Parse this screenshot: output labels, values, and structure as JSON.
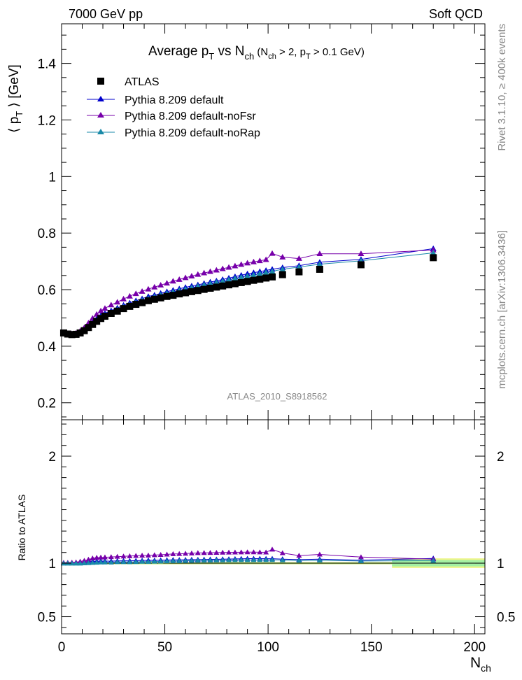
{
  "header": {
    "left": "7000 GeV pp",
    "right": "Soft QCD",
    "side_top": "Rivet 3.1.10, ≥ 400k events",
    "side_bottom": "mcplots.cern.ch [arXiv:1306.3436]"
  },
  "chart_data": [
    {
      "type": "scatter",
      "title_main": "Average p",
      "title_sub_T": "T",
      "title_mid": " vs N",
      "title_sub_ch": "ch",
      "title_cond": " (N",
      "title_cond_sub": "ch",
      "title_cond2": " > 2, p",
      "title_cond_sub2": "T",
      "title_cond3": " > 0.1 GeV)",
      "ylabel": "⟨ pₜ ⟩ [GeV]",
      "ylabel_pre": "⟨ p",
      "ylabel_sub": "T",
      "ylabel_post": " ⟩ [GeV]",
      "watermark": "ATLAS_2010_S8918562",
      "xlim": [
        0,
        205
      ],
      "ylim": [
        0.14,
        1.54
      ],
      "yticks": [
        0.2,
        0.4,
        0.6,
        0.8,
        1,
        1.2,
        1.4
      ],
      "ytick_labels": [
        "0.2",
        "0.4",
        "0.6",
        "0.8",
        "1",
        "1.2",
        "1.4"
      ],
      "legend": [
        {
          "label": "ATLAS",
          "color": "#000000",
          "marker": "square"
        },
        {
          "label": "Pythia 8.209 default",
          "color": "#0000cc",
          "marker": "triangle"
        },
        {
          "label": "Pythia 8.209 default-noFsr",
          "color": "#7700aa",
          "marker": "triangle"
        },
        {
          "label": "Pythia 8.209 default-noRap",
          "color": "#1a8aa8",
          "marker": "triangle"
        }
      ],
      "series": [
        {
          "name": "ATLAS",
          "color": "#000000",
          "marker": "square",
          "x": [
            1,
            3,
            5,
            7,
            9,
            11,
            13,
            15,
            17,
            19,
            21,
            24,
            27,
            30,
            33,
            36,
            39,
            42,
            45,
            48,
            51,
            54,
            57,
            60,
            63,
            66,
            69,
            72,
            75,
            78,
            81,
            84,
            87,
            90,
            93,
            96,
            99,
            102,
            107,
            115,
            125,
            145,
            180
          ],
          "y": [
            0.447,
            0.443,
            0.441,
            0.442,
            0.447,
            0.455,
            0.466,
            0.477,
            0.488,
            0.498,
            0.506,
            0.516,
            0.524,
            0.533,
            0.541,
            0.548,
            0.554,
            0.561,
            0.566,
            0.571,
            0.576,
            0.58,
            0.585,
            0.589,
            0.593,
            0.597,
            0.601,
            0.605,
            0.609,
            0.613,
            0.617,
            0.621,
            0.625,
            0.629,
            0.633,
            0.637,
            0.641,
            0.645,
            0.653,
            0.663,
            0.672,
            0.688,
            0.713
          ]
        },
        {
          "name": "Pythia 8.209 default",
          "color": "#0000cc",
          "marker": "triangle",
          "x": [
            1,
            3,
            5,
            7,
            9,
            11,
            13,
            15,
            17,
            19,
            21,
            24,
            27,
            30,
            33,
            36,
            39,
            42,
            45,
            48,
            51,
            54,
            57,
            60,
            63,
            66,
            69,
            72,
            75,
            78,
            81,
            84,
            87,
            90,
            93,
            96,
            99,
            102,
            107,
            115,
            125,
            145,
            180
          ],
          "y": [
            0.448,
            0.444,
            0.442,
            0.443,
            0.449,
            0.459,
            0.472,
            0.485,
            0.497,
            0.508,
            0.516,
            0.526,
            0.535,
            0.545,
            0.553,
            0.561,
            0.568,
            0.576,
            0.581,
            0.587,
            0.593,
            0.598,
            0.603,
            0.608,
            0.613,
            0.617,
            0.622,
            0.627,
            0.631,
            0.636,
            0.641,
            0.646,
            0.651,
            0.656,
            0.66,
            0.664,
            0.668,
            0.672,
            0.678,
            0.685,
            0.697,
            0.707,
            0.745
          ]
        },
        {
          "name": "Pythia 8.209 default-noFsr",
          "color": "#7700aa",
          "marker": "triangle",
          "x": [
            1,
            3,
            5,
            7,
            9,
            11,
            13,
            15,
            17,
            19,
            21,
            24,
            27,
            30,
            33,
            36,
            39,
            42,
            45,
            48,
            51,
            54,
            57,
            60,
            63,
            66,
            69,
            72,
            75,
            78,
            81,
            84,
            87,
            90,
            93,
            96,
            99,
            102,
            107,
            115,
            125,
            145,
            180
          ],
          "y": [
            0.449,
            0.445,
            0.444,
            0.446,
            0.454,
            0.466,
            0.482,
            0.499,
            0.513,
            0.525,
            0.534,
            0.546,
            0.556,
            0.567,
            0.577,
            0.586,
            0.594,
            0.602,
            0.609,
            0.616,
            0.623,
            0.63,
            0.636,
            0.642,
            0.648,
            0.654,
            0.659,
            0.664,
            0.669,
            0.674,
            0.679,
            0.684,
            0.689,
            0.694,
            0.698,
            0.702,
            0.706,
            0.728,
            0.715,
            0.71,
            0.727,
            0.727,
            0.74
          ]
        },
        {
          "name": "Pythia 8.209 default-noRap",
          "color": "#1a8aa8",
          "marker": "triangle",
          "x": [
            1,
            3,
            5,
            7,
            9,
            11,
            13,
            15,
            17,
            19,
            21,
            24,
            27,
            30,
            33,
            36,
            39,
            42,
            45,
            48,
            51,
            54,
            57,
            60,
            63,
            66,
            69,
            72,
            75,
            78,
            81,
            84,
            87,
            90,
            93,
            96,
            99,
            102,
            107,
            115,
            125,
            145,
            180
          ],
          "y": [
            0.446,
            0.442,
            0.44,
            0.441,
            0.446,
            0.455,
            0.467,
            0.479,
            0.491,
            0.502,
            0.51,
            0.52,
            0.53,
            0.539,
            0.547,
            0.555,
            0.562,
            0.569,
            0.575,
            0.581,
            0.587,
            0.592,
            0.597,
            0.602,
            0.607,
            0.612,
            0.617,
            0.621,
            0.626,
            0.63,
            0.635,
            0.64,
            0.644,
            0.648,
            0.652,
            0.657,
            0.661,
            0.665,
            0.672,
            0.68,
            0.69,
            0.702,
            0.73
          ]
        }
      ]
    },
    {
      "type": "scatter",
      "ylabel": "Ratio to ATLAS",
      "xlabel_main": "N",
      "xlabel_sub": "ch",
      "xlim": [
        0,
        205
      ],
      "ylim": [
        0.34,
        2.34
      ],
      "xticks": [
        0,
        50,
        100,
        150,
        200
      ],
      "xtick_labels": [
        "0",
        "50",
        "100",
        "150",
        "200"
      ],
      "yticks": [
        0.5,
        1,
        2
      ],
      "ytick_labels": [
        "0.5",
        "1",
        "2"
      ],
      "bands": [
        {
          "x0": 0,
          "x1": 160,
          "ylo": 0.99,
          "yhi": 1.01,
          "color": "#c9f07a"
        },
        {
          "x0": 160,
          "x1": 205,
          "ylo": 0.955,
          "yhi": 1.045,
          "color": "#eef58a"
        },
        {
          "x0": 160,
          "x1": 205,
          "ylo": 0.97,
          "yhi": 1.03,
          "color": "#a3f0a3"
        }
      ]
    }
  ]
}
